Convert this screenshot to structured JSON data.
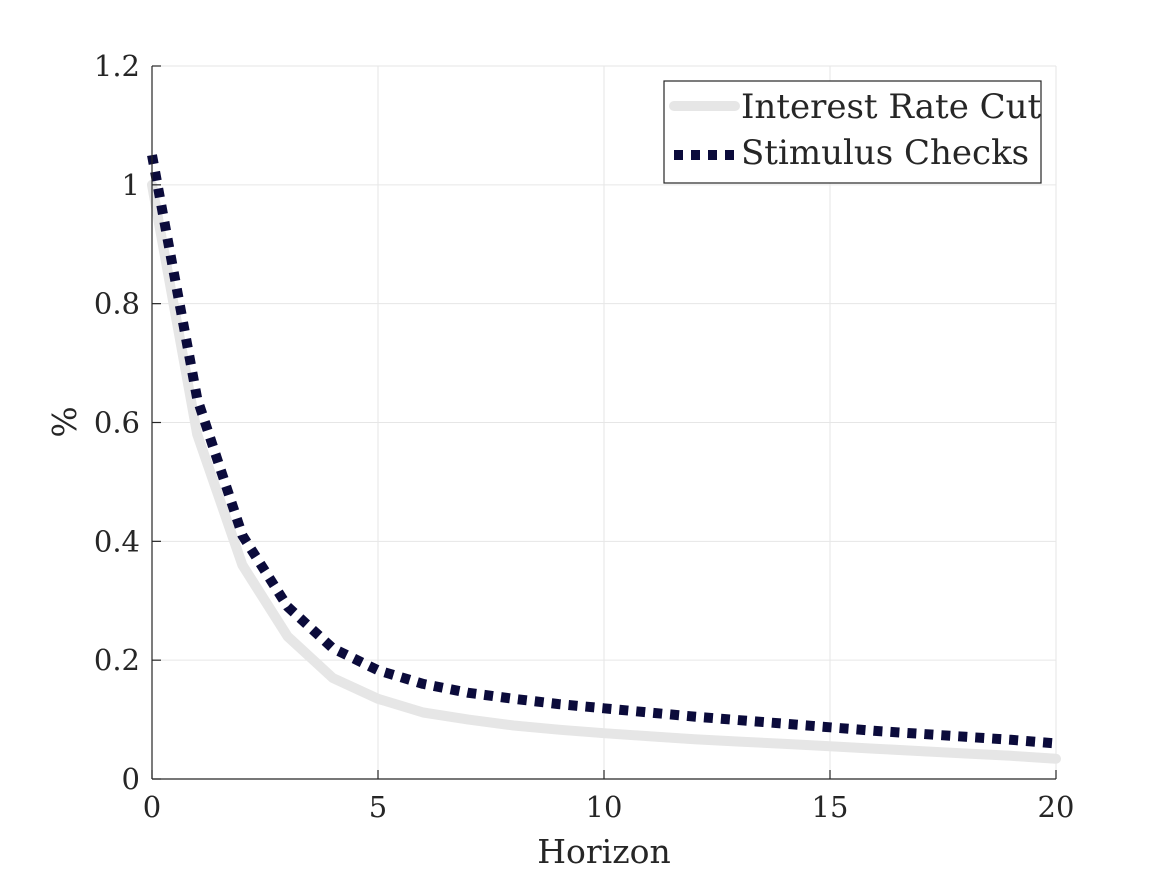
{
  "chart_data": {
    "type": "line",
    "xlabel": "Horizon",
    "ylabel": "%",
    "xlim": [
      0,
      20
    ],
    "ylim": [
      0,
      1.2
    ],
    "xticks": [
      0,
      5,
      10,
      15,
      20
    ],
    "xtick_labels": [
      "0",
      "5",
      "10",
      "15",
      "20"
    ],
    "yticks": [
      0,
      0.2,
      0.4,
      0.6,
      0.8,
      1,
      1.2
    ],
    "ytick_labels": [
      "0",
      "0.2",
      "0.4",
      "0.6",
      "0.8",
      "1",
      "1.2"
    ],
    "grid": true,
    "legend_position": "top-right",
    "x": [
      0,
      1,
      2,
      3,
      4,
      5,
      6,
      7,
      8,
      9,
      10,
      11,
      12,
      13,
      14,
      15,
      16,
      17,
      18,
      19,
      20
    ],
    "series": [
      {
        "name": "Interest Rate Cut",
        "color": "#e6e6e6",
        "style": "solid",
        "values": [
          1.0,
          0.58,
          0.36,
          0.24,
          0.17,
          0.135,
          0.112,
          0.1,
          0.09,
          0.083,
          0.077,
          0.072,
          0.067,
          0.063,
          0.059,
          0.055,
          0.051,
          0.047,
          0.043,
          0.039,
          0.034
        ]
      },
      {
        "name": "Stimulus Checks",
        "color": "#0b0b3b",
        "style": "dotted",
        "values": [
          1.05,
          0.64,
          0.41,
          0.29,
          0.22,
          0.183,
          0.16,
          0.145,
          0.135,
          0.126,
          0.119,
          0.112,
          0.105,
          0.099,
          0.093,
          0.087,
          0.081,
          0.076,
          0.071,
          0.066,
          0.06
        ]
      }
    ]
  }
}
